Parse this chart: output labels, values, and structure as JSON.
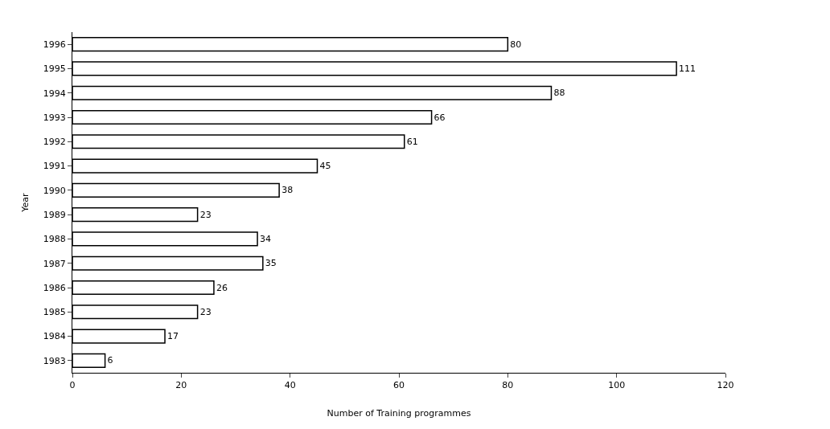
{
  "chart_data": {
    "type": "bar",
    "orientation": "horizontal",
    "xlabel": "Number of Training programmes",
    "ylabel": "Year",
    "categories": [
      "1996",
      "1995",
      "1994",
      "1993",
      "1992",
      "1991",
      "1990",
      "1989",
      "1988",
      "1987",
      "1986",
      "1985",
      "1984",
      "1983"
    ],
    "values": [
      80,
      111,
      88,
      66,
      61,
      45,
      38,
      23,
      34,
      35,
      26,
      23,
      17,
      6
    ],
    "color": "#ffffff",
    "xlim": [
      0,
      120
    ],
    "xticks": [
      0,
      20,
      40,
      60,
      80,
      100,
      120
    ],
    "grid": false,
    "data_labels": true
  }
}
